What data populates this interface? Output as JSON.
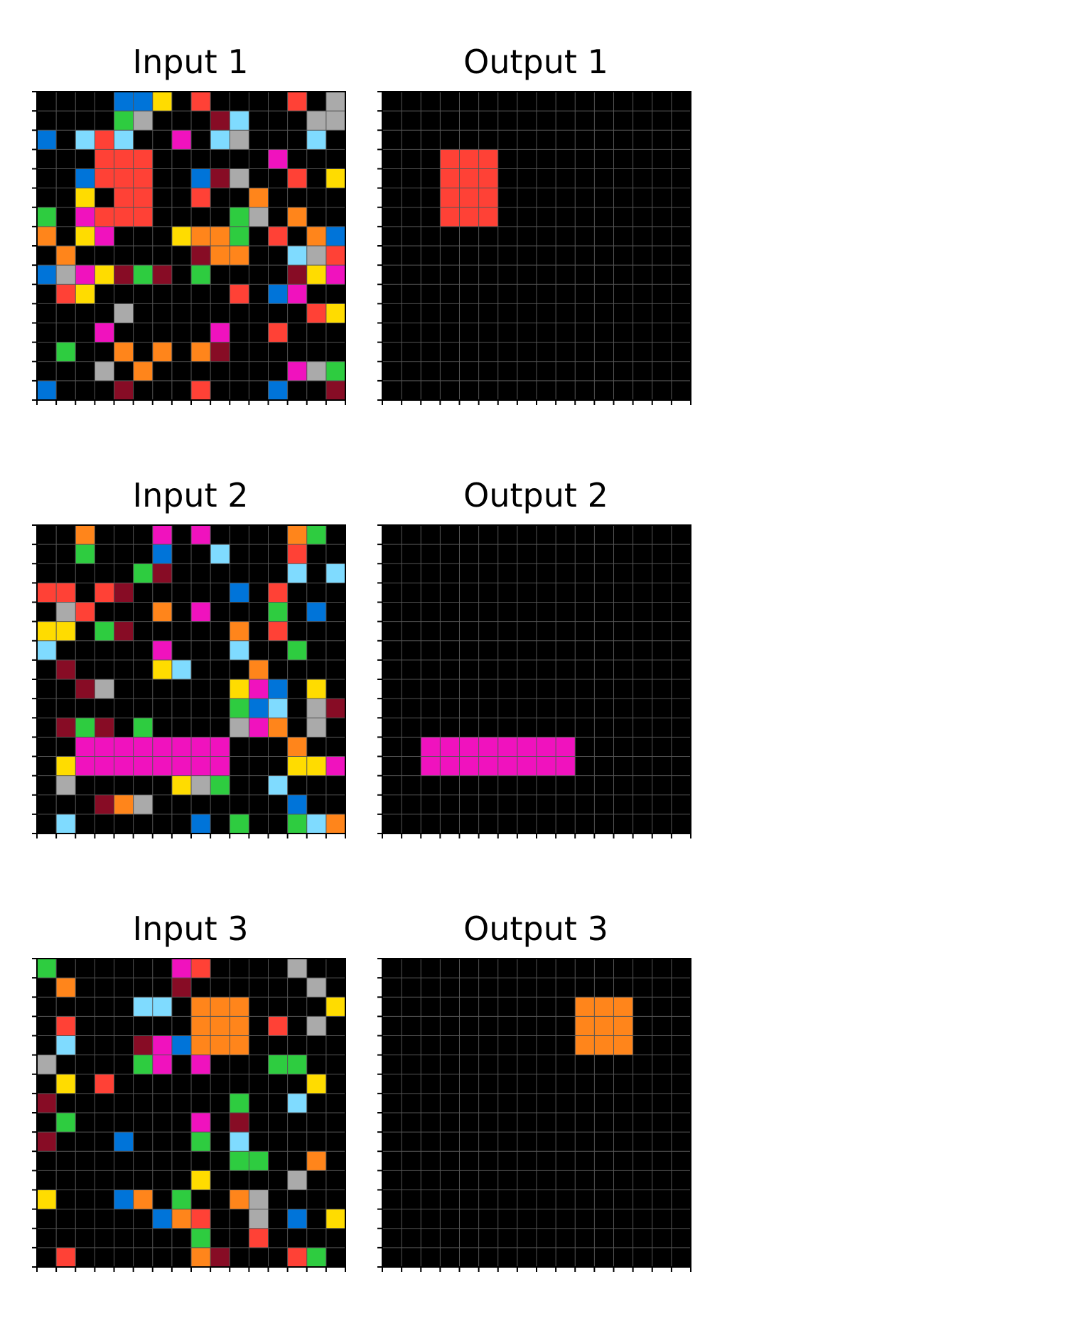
{
  "palette": {
    "0": "#000000",
    "1": "#0074D9",
    "2": "#FF4136",
    "3": "#2ECC40",
    "4": "#FFDC00",
    "5": "#AAAAAA",
    "6": "#F012BE",
    "7": "#FF851B",
    "8": "#7FDBFF",
    "9": "#870C25"
  },
  "grid_line_color": "#555555",
  "pairs": [
    {
      "input_title": "Input 1",
      "output_title": "Output 1",
      "input": [
        "0000114020000205",
        "0000350009800055",
        "1082800608500080",
        "0002220000006000",
        "0012220019500204",
        "0040220020070000",
        "3062220000350700",
        "7046000477302071",
        "0700000097700852",
        "1564939030000946",
        "0240000000201600",
        "0000500000000024",
        "0006000006002000",
        "0300707079000000",
        "0005070000000653",
        "1000900020001009"
      ],
      "output": [
        "0000000000000000",
        "0000000000000000",
        "0000000000000000",
        "0002220000000000",
        "0002220000000000",
        "0002220000000000",
        "0002220000000000",
        "0000000000000000",
        "0000000000000000",
        "0000000000000000",
        "0000000000000000",
        "0000000000000000",
        "0000000000000000",
        "0000000000000000",
        "0000000000000000",
        "0000000000000000"
      ]
    },
    {
      "input_title": "Input 2",
      "output_title": "Output 2",
      "input": [
        "0070006060000730",
        "0030001008000200",
        "0000039000000808",
        "2202900000102000",
        "0520007060003010",
        "4403900000702000",
        "8000006000800300",
        "0900004800070000",
        "0095000000461040",
        "0000000000318059",
        "0939030000567050",
        "0066666666000700",
        "0466666666000446",
        "0500000453008000",
        "0009750000000100",
        "0800000010300387"
      ],
      "output": [
        "0000000000000000",
        "0000000000000000",
        "0000000000000000",
        "0000000000000000",
        "0000000000000000",
        "0000000000000000",
        "0000000000000000",
        "0000000000000000",
        "0000000000000000",
        "0000000000000000",
        "0000000000000000",
        "0066666666000000",
        "0066666666000000",
        "0000000000000000",
        "0000000000000000",
        "0000000000000000"
      ]
    },
    {
      "input_title": "Input 3",
      "output_title": "Output 3",
      "input": [
        "3000000620000500",
        "0700000900000050",
        "0000088077700004",
        "0200000077702050",
        "0800096177700000",
        "5000036060003300",
        "0402000000000040",
        "9000000000300800",
        "0300000060900000",
        "9000100030800000",
        "0000000000330070",
        "0000000040000500",
        "4000170300750000",
        "0000001720050104",
        "0000000030020000",
        "0200000079000230"
      ],
      "output": [
        "0000000000000000",
        "0000000000000000",
        "0000000000777000",
        "0000000000777000",
        "0000000000777000",
        "0000000000000000",
        "0000000000000000",
        "0000000000000000",
        "0000000000000000",
        "0000000000000000",
        "0000000000000000",
        "0000000000000000",
        "0000000000000000",
        "0000000000000000",
        "0000000000000000",
        "0000000000000000"
      ]
    }
  ]
}
